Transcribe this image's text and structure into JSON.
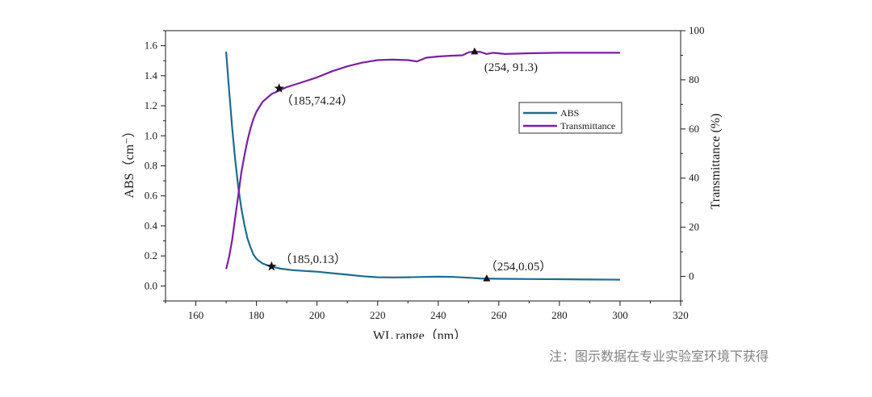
{
  "note": "注：图示数据在专业实验室环境下获得",
  "chart_data": {
    "type": "line",
    "xlabel": "WL range（nm）",
    "ylabel_left": "ABS（cm⁻）",
    "ylabel_right": "Transmittance (%)",
    "xlim": [
      150,
      320
    ],
    "ylim_left": [
      -0.1,
      1.7
    ],
    "ylim_right": [
      -10,
      100
    ],
    "x_ticks": [
      160,
      180,
      200,
      220,
      240,
      260,
      280,
      300,
      320
    ],
    "y_left_ticks": [
      0.0,
      0.2,
      0.4,
      0.6,
      0.8,
      1.0,
      1.2,
      1.4,
      1.6
    ],
    "y_right_ticks": [
      0,
      20,
      40,
      60,
      80,
      100
    ],
    "grid": false,
    "legend_position": "center-right",
    "series": [
      {
        "name": "ABS",
        "axis": "left",
        "color": "#1f6b8f",
        "x": [
          170,
          171,
          172,
          173,
          174,
          175,
          176,
          177,
          178,
          179,
          180,
          182,
          184,
          185,
          188,
          192,
          196,
          200,
          205,
          210,
          215,
          220,
          225,
          230,
          235,
          240,
          245,
          250,
          254,
          260,
          270,
          280,
          290,
          300
        ],
        "y": [
          1.56,
          1.3,
          1.05,
          0.84,
          0.66,
          0.52,
          0.41,
          0.32,
          0.26,
          0.21,
          0.18,
          0.15,
          0.135,
          0.13,
          0.115,
          0.105,
          0.1,
          0.095,
          0.085,
          0.075,
          0.065,
          0.058,
          0.057,
          0.058,
          0.06,
          0.062,
          0.06,
          0.055,
          0.05,
          0.048,
          0.046,
          0.045,
          0.043,
          0.042
        ]
      },
      {
        "name": "Transmittance",
        "axis": "right",
        "color": "#7b1fa2",
        "x": [
          170,
          171,
          172,
          173,
          174,
          175,
          176,
          177,
          178,
          179,
          180,
          182,
          185,
          190,
          195,
          200,
          205,
          210,
          215,
          220,
          225,
          230,
          233,
          236,
          240,
          244,
          248,
          250,
          252,
          254,
          256,
          258,
          262,
          270,
          280,
          290,
          300
        ],
        "y": [
          3,
          8,
          15,
          24,
          33,
          42,
          49,
          55,
          60,
          64,
          67,
          71,
          74.24,
          77,
          79,
          81,
          83.5,
          85.5,
          87,
          88,
          88.2,
          88,
          87.5,
          89,
          89.5,
          89.8,
          90,
          91.2,
          91.5,
          91.3,
          90.5,
          91,
          90.5,
          90.8,
          91,
          91,
          91
        ]
      }
    ],
    "annotations": [
      {
        "text": "（185,74.24）",
        "series": "Transmittance",
        "x": 187.5,
        "y": 76.5,
        "marker": "star"
      },
      {
        "text": "(254, 91.3)",
        "series": "Transmittance",
        "x": 252,
        "y": 91.5,
        "marker": "triangle"
      },
      {
        "text": "（185,0.13）",
        "series": "ABS",
        "x": 185,
        "y": 0.13,
        "marker": "star"
      },
      {
        "text": "（254,0.05）",
        "series": "ABS",
        "x": 256,
        "y": 0.05,
        "marker": "triangle"
      }
    ]
  }
}
